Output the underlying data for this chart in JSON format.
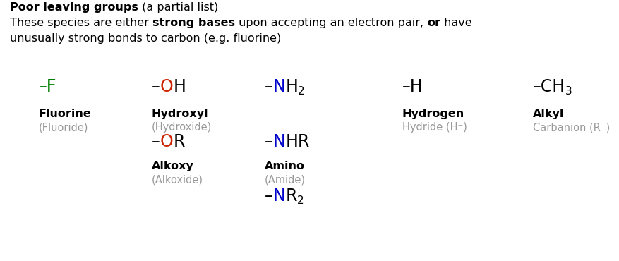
{
  "bg_color": "#ffffff",
  "black": "#000000",
  "green": "#008000",
  "red": "#cc2200",
  "blue": "#0000cc",
  "gray": "#999999",
  "title_bold": "Poor leaving groups",
  "title_normal": " (a partial list)",
  "line2_p1": "These species are either ",
  "line2_b1": "strong bases",
  "line2_p2": " upon accepting an electron pair, ",
  "line2_b2": "or",
  "line2_p3": " have",
  "line3": "unusually strong bonds to carbon (e.g. fluorine)",
  "font_size_title": 11.5,
  "font_size_formula": 17,
  "font_size_name": 11.5,
  "font_size_alias": 10.5,
  "font_size_sub": 11
}
